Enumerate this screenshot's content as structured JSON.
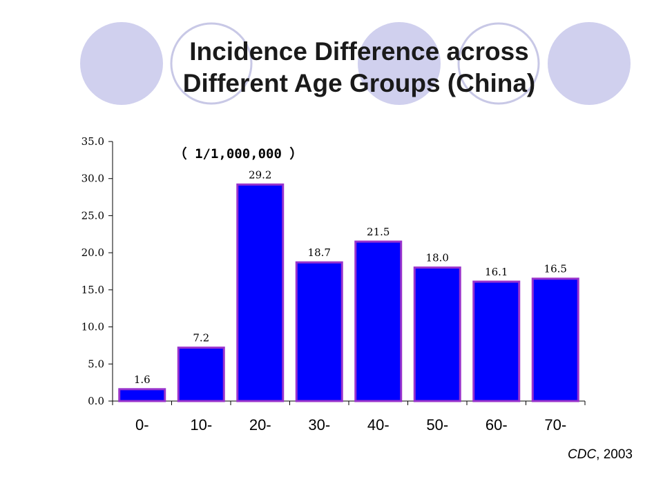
{
  "title_lines": [
    "Incidence Difference across",
    "Different Age Groups (China)"
  ],
  "source": {
    "org": "CDC",
    "rest": ", 2003"
  },
  "colors": {
    "bar_fill": "#0000ff",
    "bar_edge": "#9933cc",
    "circle_fill": "#d0d0ee",
    "circle_ring": "#c8c8e6"
  },
  "chart_data": {
    "type": "bar",
    "unit_label": "（ 1/1,000,000 ）",
    "categories": [
      "0-",
      "10-",
      "20-",
      "30-",
      "40-",
      "50-",
      "60-",
      "70-"
    ],
    "values": [
      1.6,
      7.2,
      29.2,
      18.7,
      21.5,
      18.0,
      16.1,
      16.5
    ],
    "value_labels": [
      "1.6",
      "7.2",
      "29.2",
      "18.7",
      "21.5",
      "18.0",
      "16.1",
      "16.5"
    ],
    "y_ticks": [
      "0.0",
      "5.0",
      "10.0",
      "15.0",
      "20.0",
      "25.0",
      "30.0",
      "35.0"
    ],
    "ylim": [
      0,
      35
    ],
    "grid": false,
    "legend": false
  }
}
